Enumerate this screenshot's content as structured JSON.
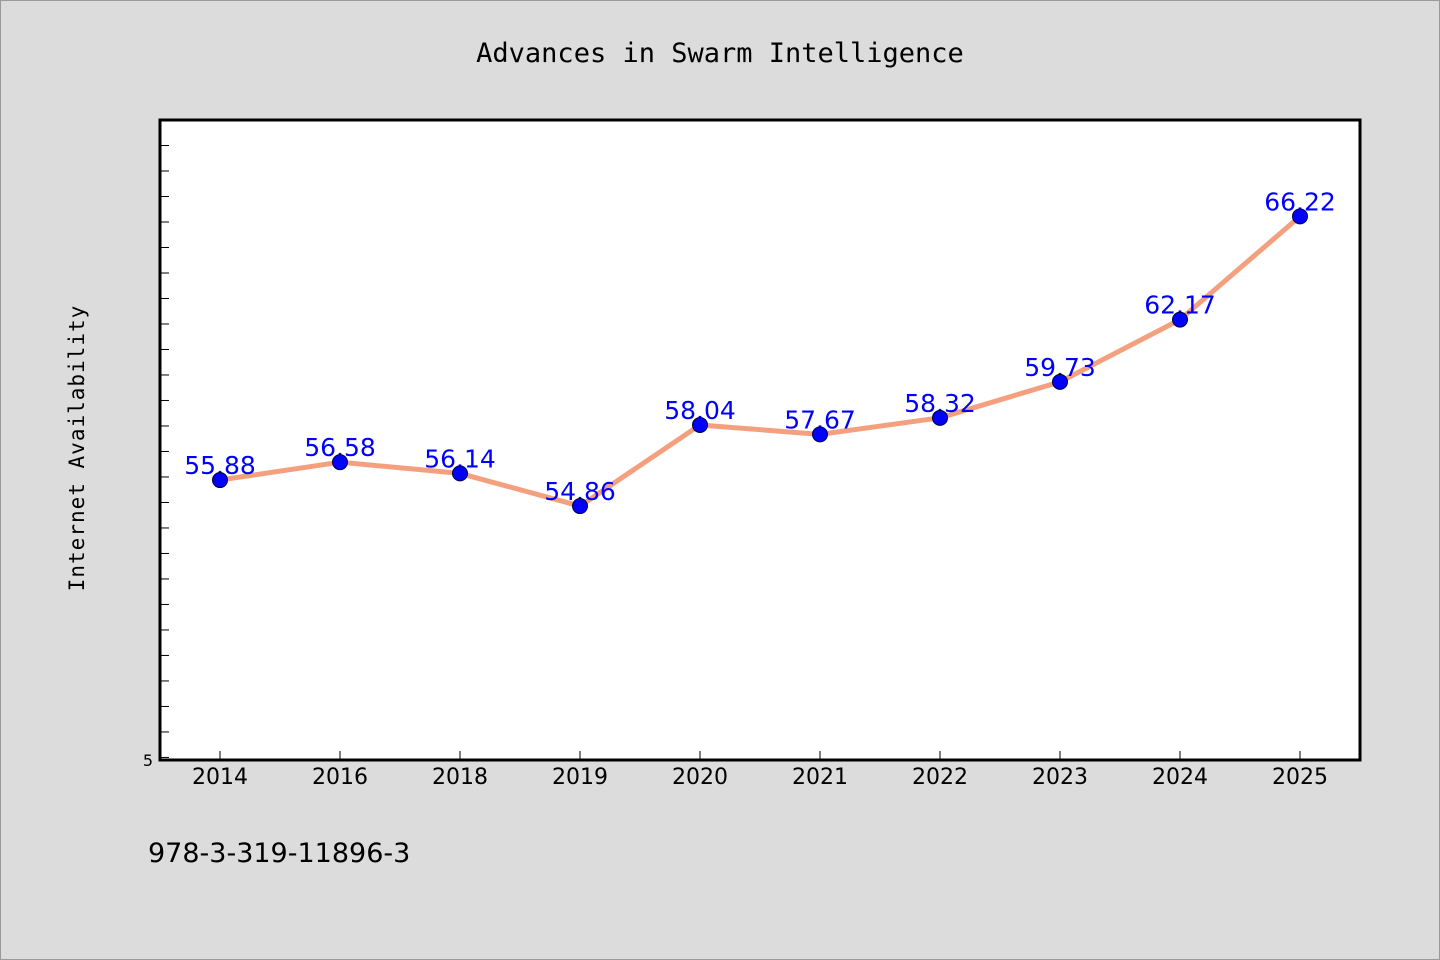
{
  "chart_data": {
    "type": "line",
    "title": "Advances in Swarm Intelligence",
    "xlabel": "",
    "ylabel": "Internet Availability",
    "categories": [
      "2014",
      "2016",
      "2018",
      "2019",
      "2020",
      "2021",
      "2022",
      "2023",
      "2024",
      "2025"
    ],
    "series": [
      {
        "values": [
          55.88,
          56.58,
          56.14,
          54.86,
          58.04,
          57.67,
          58.32,
          59.73,
          62.17,
          66.22
        ],
        "labels": [
          "55.88",
          "56.58",
          "56.14",
          "54.86",
          "58.04",
          "57.67",
          "58.32",
          "59.73",
          "62.17",
          "66.22"
        ],
        "line_color": "#f4a07f",
        "marker_color": "#0000ff"
      }
    ],
    "ylim": [
      44.9,
      70.0
    ],
    "yticks_labeled": [
      "5"
    ],
    "grid": false,
    "legend": "none",
    "frame_color": "#000000",
    "plot_background": "#ffffff",
    "figure_background": "#dcdcdc"
  },
  "footer": {
    "text": "978-3-319-11896-3"
  }
}
